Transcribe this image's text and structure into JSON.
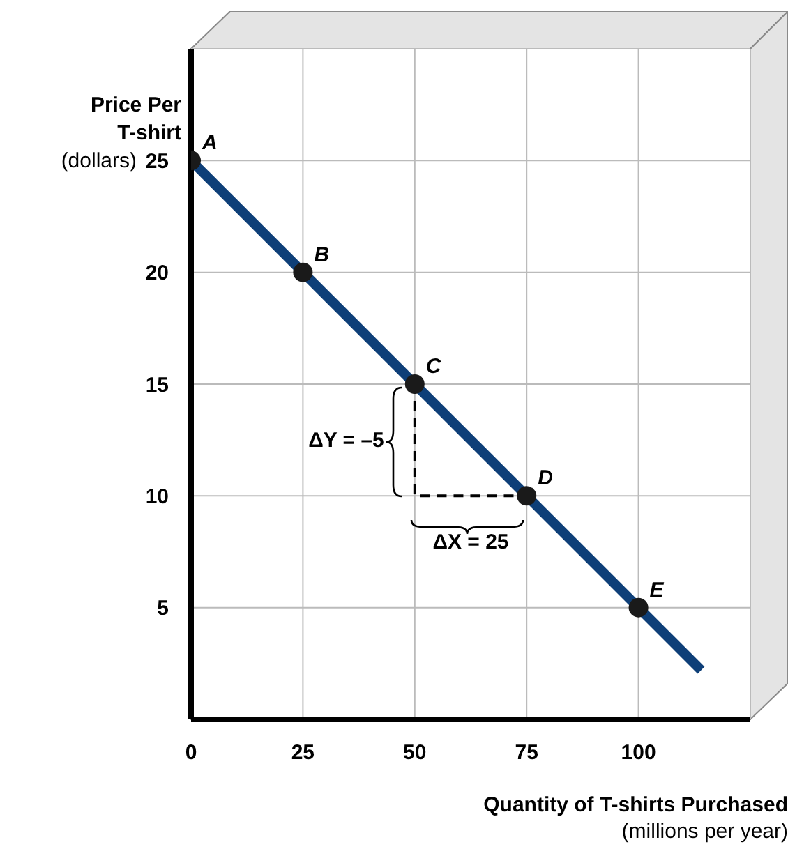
{
  "chart_data": {
    "type": "line",
    "xlabel": "Quantity of T-shirts Purchased\n(millions per year)",
    "ylabel": "Price Per\nT-shirt\n(dollars)",
    "xlim": [
      0,
      125
    ],
    "xticks": [
      0,
      25,
      50,
      75,
      100
    ],
    "ylim": [
      0,
      30
    ],
    "yticks": [
      5,
      10,
      15,
      20,
      25
    ],
    "grid": true,
    "series": [
      {
        "color": "#0e3f78",
        "x": [
          0,
          114
        ],
        "values": [
          25,
          2.2
        ]
      },
      {
        "color": "#000000",
        "line_style": "dashed",
        "x": [
          50,
          50,
          75
        ],
        "values": [
          15,
          10,
          10
        ]
      },
      {
        "type": "scatter",
        "color": "#1a1a1a",
        "x": [
          0,
          25,
          50,
          75,
          100
        ],
        "values": [
          25,
          20,
          15,
          10,
          5
        ]
      }
    ],
    "annotations": [
      {
        "text": "A",
        "x": 0,
        "y": 25
      },
      {
        "text": "B",
        "x": 25,
        "y": 20
      },
      {
        "text": "C",
        "x": 50,
        "y": 15
      },
      {
        "text": "D",
        "x": 75,
        "y": 10
      },
      {
        "text": "E",
        "x": 100,
        "y": 5
      },
      {
        "text": "ΔY = –5",
        "x": 50,
        "y": 12.5
      },
      {
        "text": "ΔX = 25",
        "x": 62.5,
        "y": 10
      }
    ]
  }
}
